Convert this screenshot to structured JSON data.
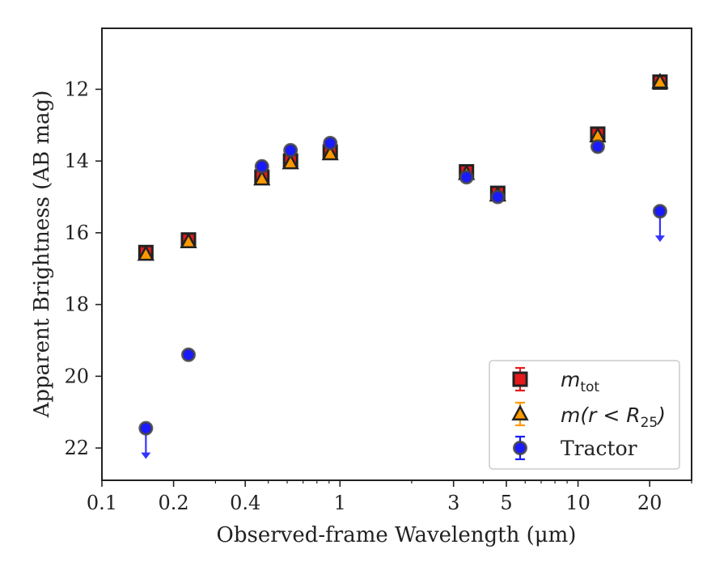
{
  "chart_data": {
    "type": "scatter",
    "title": "",
    "xlabel": "Observed-frame Wavelength (μm)",
    "ylabel": "Apparent Brightness (AB mag)",
    "xscale": "log",
    "xlim": [
      0.1,
      30
    ],
    "ylim": [
      22.9,
      10.3
    ],
    "y_inverted": true,
    "x_ticks": [
      0.1,
      0.2,
      0.4,
      1,
      3,
      5,
      10,
      20
    ],
    "x_tick_labels": [
      "0.1",
      "0.2",
      "0.4",
      "1",
      "3",
      "5",
      "10",
      "20"
    ],
    "y_ticks": [
      12,
      14,
      16,
      18,
      20,
      22
    ],
    "y_tick_labels": [
      "12",
      "14",
      "16",
      "18",
      "20",
      "22"
    ],
    "grid": false,
    "legend_position": "lower-right",
    "series": [
      {
        "name": "m_tot",
        "legend_label": "m",
        "legend_sub": "tot",
        "marker": "square",
        "color": "#e41a1c",
        "edge": "#222222",
        "x": [
          0.153,
          0.231,
          0.47,
          0.62,
          0.91,
          3.4,
          4.6,
          12.1,
          22.1
        ],
        "y": [
          16.55,
          16.2,
          14.45,
          14.0,
          13.75,
          14.3,
          14.9,
          13.25,
          11.8
        ],
        "upper_limits": [
          false,
          false,
          false,
          false,
          false,
          false,
          false,
          false,
          false
        ]
      },
      {
        "name": "m(r < R_25)",
        "legend_label": "m(r < R",
        "legend_sub": "25",
        "legend_close": ")",
        "marker": "triangle",
        "color": "#ff9900",
        "edge": "#222222",
        "x": [
          0.153,
          0.231,
          0.47,
          0.62,
          0.91,
          3.4,
          4.6,
          12.1,
          22.1
        ],
        "y": [
          16.6,
          16.25,
          14.5,
          14.05,
          13.8,
          14.35,
          14.95,
          13.3,
          11.8
        ],
        "upper_limits": [
          false,
          false,
          false,
          false,
          false,
          false,
          false,
          false,
          false
        ]
      },
      {
        "name": "Tractor",
        "marker": "circle",
        "color": "#1a1aff",
        "edge": "#444444",
        "x": [
          0.153,
          0.231,
          0.47,
          0.62,
          0.91,
          3.4,
          4.6,
          12.1,
          22.1
        ],
        "y": [
          21.45,
          19.4,
          14.15,
          13.7,
          13.5,
          14.45,
          15.0,
          13.6,
          15.4
        ],
        "upper_limits": [
          true,
          false,
          false,
          false,
          false,
          false,
          false,
          false,
          true
        ]
      }
    ]
  },
  "colors": {
    "axis": "#222222",
    "arrow": "#3333ff"
  }
}
